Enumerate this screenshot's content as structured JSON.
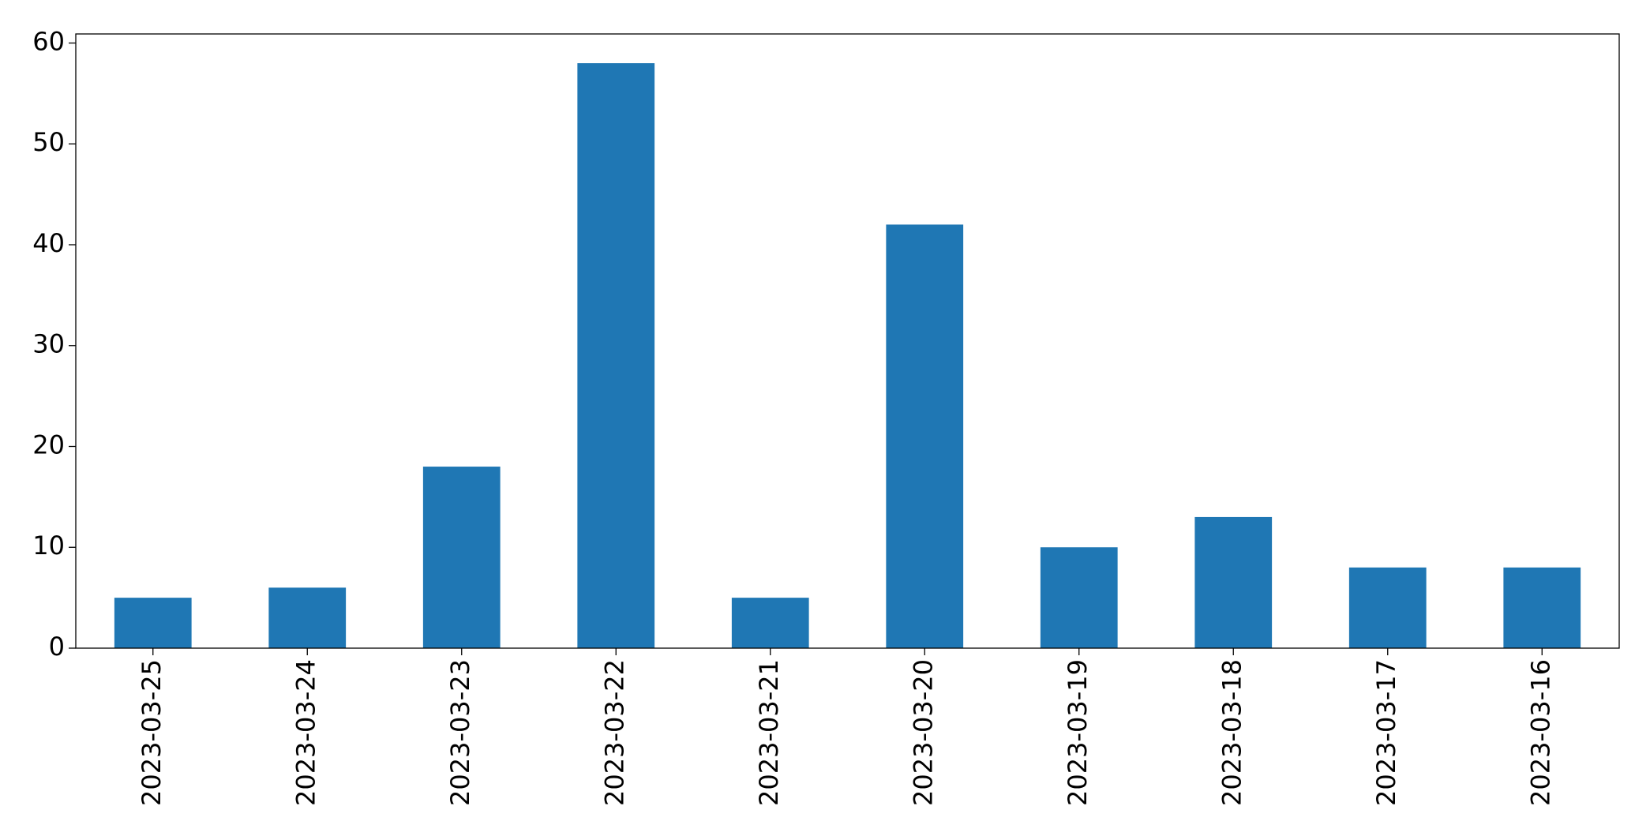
{
  "chart_data": {
    "type": "bar",
    "categories": [
      "2023-03-25",
      "2023-03-24",
      "2023-03-23",
      "2023-03-22",
      "2023-03-21",
      "2023-03-20",
      "2023-03-19",
      "2023-03-18",
      "2023-03-17",
      "2023-03-16"
    ],
    "values": [
      5,
      6,
      18,
      58,
      5,
      42,
      10,
      13,
      8,
      8
    ],
    "color": "#1f77b4",
    "ylim": [
      0,
      60.9
    ],
    "yticks": [
      0,
      10,
      20,
      30,
      40,
      50,
      60
    ],
    "grid": false
  }
}
